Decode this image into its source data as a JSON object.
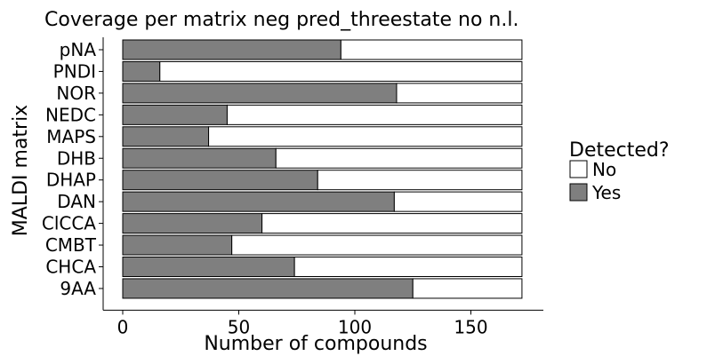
{
  "chart_data": {
    "type": "bar",
    "orientation": "horizontal",
    "stacked": true,
    "title": "Coverage per matrix neg pred_threestate no n.l.",
    "xlabel": "Number of compounds",
    "ylabel": "MALDI matrix",
    "xlim": [
      0,
      180
    ],
    "xticks": [
      0,
      50,
      100,
      150
    ],
    "categories": [
      "pNA",
      "PNDI",
      "NOR",
      "NEDC",
      "MAPS",
      "DHB",
      "DHAP",
      "DAN",
      "ClCCA",
      "CMBT",
      "CHCA",
      "9AA"
    ],
    "total": 172,
    "series": [
      {
        "name": "No",
        "color": "#ffffff",
        "values": [
          78,
          156,
          54,
          127,
          135,
          106,
          88,
          55,
          112,
          125,
          98,
          47
        ]
      },
      {
        "name": "Yes",
        "color": "#7f7f7f",
        "values": [
          94,
          16,
          118,
          45,
          37,
          66,
          84,
          117,
          60,
          47,
          74,
          125
        ]
      }
    ],
    "legend": {
      "title": "Detected?",
      "placement": "right",
      "items": [
        {
          "label": "No",
          "color": "#ffffff"
        },
        {
          "label": "Yes",
          "color": "#7f7f7f"
        }
      ]
    },
    "grid": false
  }
}
